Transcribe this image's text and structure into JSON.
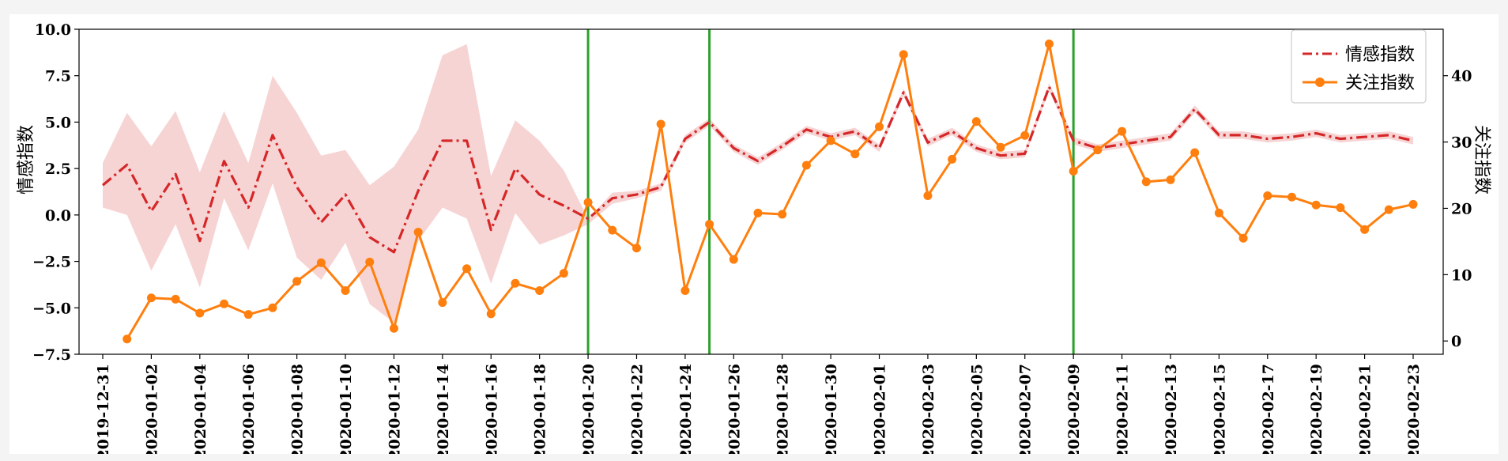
{
  "chart_data": {
    "type": "line",
    "x_dates": [
      "2019-12-31",
      "2020-01-01",
      "2020-01-02",
      "2020-01-03",
      "2020-01-04",
      "2020-01-05",
      "2020-01-06",
      "2020-01-07",
      "2020-01-08",
      "2020-01-09",
      "2020-01-10",
      "2020-01-11",
      "2020-01-12",
      "2020-01-13",
      "2020-01-14",
      "2020-01-15",
      "2020-01-16",
      "2020-01-17",
      "2020-01-18",
      "2020-01-19",
      "2020-01-20",
      "2020-01-21",
      "2020-01-22",
      "2020-01-23",
      "2020-01-24",
      "2020-01-25",
      "2020-01-26",
      "2020-01-27",
      "2020-01-28",
      "2020-01-29",
      "2020-01-30",
      "2020-01-31",
      "2020-02-01",
      "2020-02-02",
      "2020-02-03",
      "2020-02-04",
      "2020-02-05",
      "2020-02-06",
      "2020-02-07",
      "2020-02-08",
      "2020-02-09",
      "2020-02-10",
      "2020-02-11",
      "2020-02-12",
      "2020-02-13",
      "2020-02-14",
      "2020-02-15",
      "2020-02-16",
      "2020-02-17",
      "2020-02-18",
      "2020-02-19",
      "2020-02-20",
      "2020-02-21",
      "2020-02-22",
      "2020-02-23"
    ],
    "x_tick_labels": [
      "2019-12-31",
      "2020-01-02",
      "2020-01-04",
      "2020-01-06",
      "2020-01-08",
      "2020-01-10",
      "2020-01-12",
      "2020-01-14",
      "2020-01-16",
      "2020-01-18",
      "2020-01-20",
      "2020-01-22",
      "2020-01-24",
      "2020-01-26",
      "2020-01-28",
      "2020-01-30",
      "2020-02-01",
      "2020-02-03",
      "2020-02-05",
      "2020-02-07",
      "2020-02-09",
      "2020-02-11",
      "2020-02-13",
      "2020-02-15",
      "2020-02-17",
      "2020-02-19",
      "2020-02-21",
      "2020-02-23"
    ],
    "left_axis": {
      "label": "情感指数",
      "ylim": [
        -7.5,
        10.0
      ],
      "ticks": [
        "−7.5",
        "−5.0",
        "−2.5",
        "0.0",
        "2.5",
        "5.0",
        "7.5",
        "10.0"
      ],
      "tick_values": [
        -7.5,
        -5.0,
        -2.5,
        0.0,
        2.5,
        5.0,
        7.5,
        10.0
      ]
    },
    "right_axis": {
      "label": "关注指数",
      "ylim": [
        -2,
        47
      ],
      "ticks": [
        "0",
        "10",
        "20",
        "30",
        "40"
      ],
      "tick_values": [
        0,
        10,
        20,
        30,
        40
      ]
    },
    "series": [
      {
        "name": "情感指数",
        "axis": "left",
        "color": "#d62728",
        "style": "dash-dot",
        "x_start": "2019-12-31",
        "values": [
          1.6,
          2.7,
          0.2,
          2.2,
          -1.4,
          2.9,
          0.4,
          4.3,
          1.5,
          -0.4,
          1.1,
          -1.2,
          -2.0,
          1.3,
          4.0,
          4.0,
          -0.8,
          2.5,
          1.1,
          0.5,
          -0.2,
          0.9,
          1.1,
          1.5,
          4.1,
          5.0,
          3.6,
          2.9,
          3.7,
          4.6,
          4.2,
          4.5,
          3.6,
          6.6,
          3.9,
          4.5,
          3.6,
          3.2,
          3.3,
          6.9,
          4.0,
          3.6,
          3.8,
          4.0,
          4.2,
          5.7,
          4.3,
          4.3,
          4.1,
          4.2,
          4.4,
          4.1,
          4.2,
          4.3,
          4.0
        ],
        "band_upper": [
          2.8,
          5.5,
          3.7,
          5.6,
          2.3,
          5.6,
          2.8,
          7.5,
          5.5,
          3.2,
          3.5,
          1.6,
          2.6,
          4.6,
          8.6,
          9.2,
          2.1,
          5.1,
          4.0,
          2.4,
          -0.2,
          1.2,
          1.3,
          1.7,
          4.3,
          5.2,
          3.8,
          3.1,
          3.9,
          4.8,
          4.4,
          4.7,
          3.8,
          6.8,
          4.1,
          4.7,
          3.8,
          3.4,
          3.5,
          7.1,
          4.2,
          3.8,
          4.0,
          4.2,
          4.4,
          5.9,
          4.5,
          4.5,
          4.3,
          4.4,
          4.6,
          4.3,
          4.4,
          4.5,
          4.2
        ],
        "band_lower": [
          0.4,
          0.0,
          -3.0,
          -0.5,
          -3.9,
          0.9,
          -1.9,
          1.7,
          -2.3,
          -3.5,
          -1.5,
          -4.8,
          -5.8,
          -1.4,
          0.4,
          -0.2,
          -3.7,
          0.1,
          -1.6,
          -1.1,
          -0.5,
          0.6,
          0.9,
          1.3,
          3.9,
          4.8,
          3.4,
          2.7,
          3.5,
          4.4,
          4.0,
          4.3,
          3.4,
          6.4,
          3.7,
          4.3,
          3.4,
          3.0,
          3.1,
          6.7,
          3.8,
          3.4,
          3.6,
          3.8,
          4.0,
          5.5,
          4.1,
          4.1,
          3.9,
          4.0,
          4.2,
          3.9,
          4.0,
          4.1,
          3.8
        ]
      },
      {
        "name": "关注指数",
        "axis": "right",
        "color": "#ff7f0e",
        "style": "solid-circle",
        "x_start": "2020-01-01",
        "values": [
          0.3,
          6.5,
          6.3,
          4.2,
          5.6,
          4.0,
          5.0,
          9.0,
          11.8,
          7.6,
          11.9,
          1.9,
          16.4,
          5.8,
          10.9,
          4.1,
          8.7,
          7.6,
          10.2,
          20.9,
          16.7,
          14.0,
          32.7,
          7.6,
          17.6,
          12.3,
          19.3,
          19.1,
          26.5,
          30.2,
          28.2,
          32.3,
          43.2,
          21.9,
          27.4,
          33.1,
          29.2,
          31.0,
          44.8,
          25.6,
          28.8,
          31.6,
          24.0,
          24.3,
          28.4,
          19.3,
          15.5,
          21.9,
          21.7,
          20.5,
          20.1,
          16.8,
          19.8,
          20.6
        ]
      }
    ],
    "vertical_lines": {
      "color": "#2ca02c",
      "dates": [
        "2020-01-20",
        "2020-01-25",
        "2020-02-09"
      ]
    },
    "legend": {
      "position": "top-right",
      "entries": [
        "情感指数",
        "关注指数"
      ]
    },
    "grid": false
  }
}
